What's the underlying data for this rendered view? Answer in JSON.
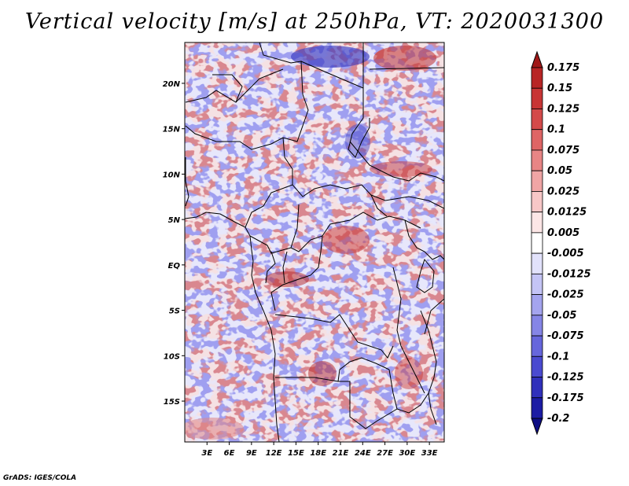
{
  "title": "Vertical velocity [m/s] at 250hPa, VT: 2020031300",
  "footer": "GrADS: IGES/COLA",
  "map": {
    "lon_range": [
      0,
      35
    ],
    "lat_range": [
      -19.5,
      24.5
    ],
    "lat_ticks": [
      {
        "value": 20,
        "label": "20N"
      },
      {
        "value": 15,
        "label": "15N"
      },
      {
        "value": 10,
        "label": "10N"
      },
      {
        "value": 5,
        "label": "5N"
      },
      {
        "value": 0,
        "label": "EQ"
      },
      {
        "value": -5,
        "label": "5S"
      },
      {
        "value": -10,
        "label": "10S"
      },
      {
        "value": -15,
        "label": "15S"
      }
    ],
    "lon_ticks": [
      {
        "value": 3,
        "label": "3E"
      },
      {
        "value": 6,
        "label": "6E"
      },
      {
        "value": 9,
        "label": "9E"
      },
      {
        "value": 12,
        "label": "12E"
      },
      {
        "value": 15,
        "label": "15E"
      },
      {
        "value": 18,
        "label": "18E"
      },
      {
        "value": 21,
        "label": "21E"
      },
      {
        "value": 24,
        "label": "24E"
      },
      {
        "value": 27,
        "label": "27E"
      },
      {
        "value": 30,
        "label": "30E"
      },
      {
        "value": 33,
        "label": "33E"
      }
    ]
  },
  "colorbar": {
    "labels": [
      "0.175",
      "0.15",
      "0.125",
      "0.1",
      "0.075",
      "0.05",
      "0.025",
      "0.0125",
      "0.005",
      "-0.005",
      "-0.0125",
      "-0.025",
      "-0.05",
      "-0.075",
      "-0.1",
      "-0.125",
      "-0.175",
      "-0.2"
    ],
    "colors": [
      "#a01818",
      "#b82525",
      "#c83535",
      "#d44a4a",
      "#df6565",
      "#e88585",
      "#f0a5a5",
      "#f7c7c7",
      "#fce6e6",
      "#ffffff",
      "#e2e2fb",
      "#c4c4f5",
      "#a4a4ee",
      "#8585e6",
      "#6666dc",
      "#4a4ad0",
      "#3030bb",
      "#1c1ca4",
      "#0e0e84"
    ]
  }
}
